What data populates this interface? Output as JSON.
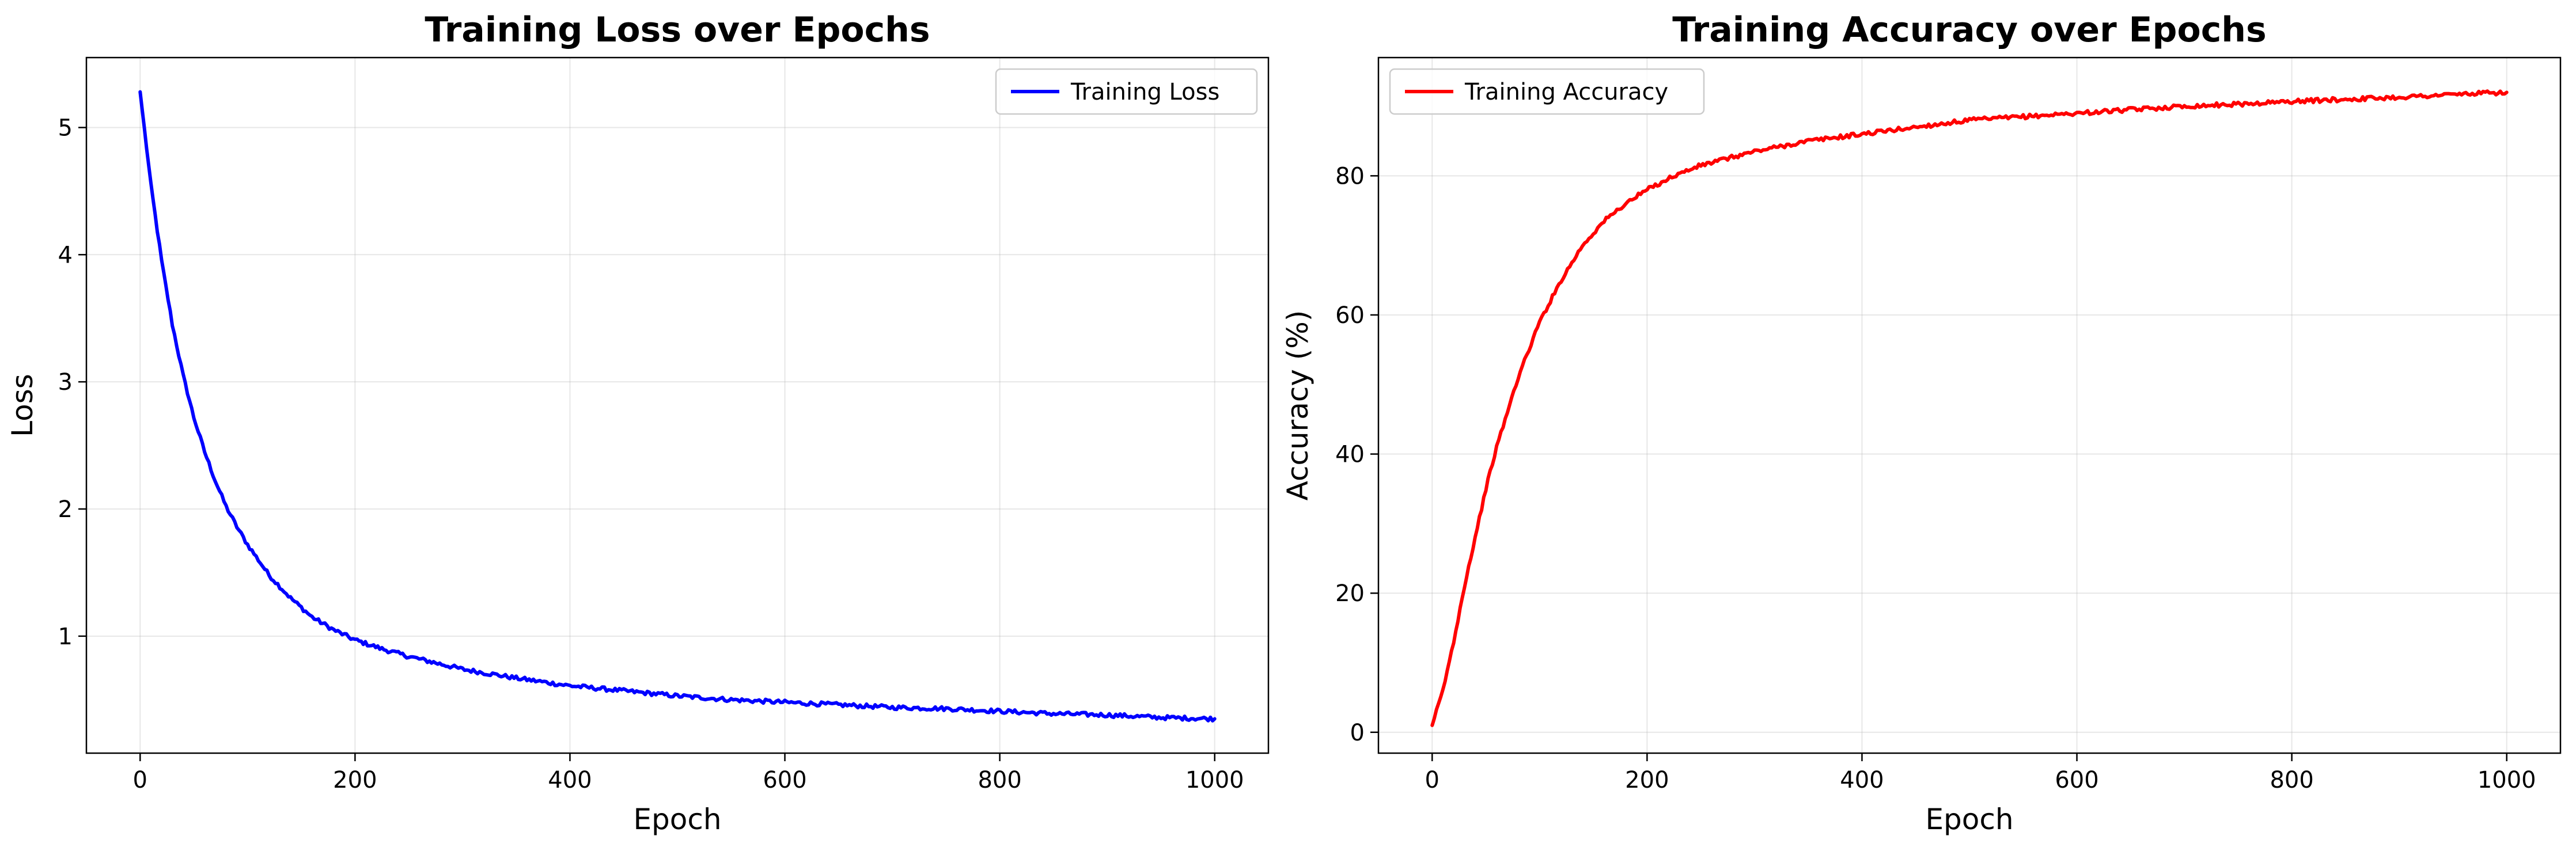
{
  "chart_data": [
    {
      "type": "line",
      "title": "Training Loss over Epochs",
      "xlabel": "Epoch",
      "ylabel": "Loss",
      "xlim": [
        -50,
        1050
      ],
      "ylim": [
        0.08,
        5.55
      ],
      "xticks": [
        0,
        200,
        400,
        600,
        800,
        1000
      ],
      "yticks": [
        1,
        2,
        3,
        4,
        5
      ],
      "grid": true,
      "legend": "upper-right",
      "series": [
        {
          "name": "Training Loss",
          "color": "#0000ff",
          "x": [
            0,
            10,
            20,
            30,
            40,
            50,
            60,
            70,
            80,
            90,
            100,
            120,
            140,
            160,
            180,
            200,
            225,
            250,
            275,
            300,
            350,
            400,
            450,
            500,
            550,
            600,
            650,
            700,
            750,
            800,
            850,
            900,
            950,
            1000
          ],
          "y": [
            5.28,
            4.55,
            3.95,
            3.45,
            3.05,
            2.72,
            2.45,
            2.22,
            2.02,
            1.86,
            1.72,
            1.48,
            1.3,
            1.15,
            1.05,
            0.97,
            0.9,
            0.84,
            0.79,
            0.74,
            0.67,
            0.61,
            0.57,
            0.53,
            0.5,
            0.48,
            0.46,
            0.44,
            0.43,
            0.41,
            0.39,
            0.38,
            0.36,
            0.35
          ]
        }
      ]
    },
    {
      "type": "line",
      "title": "Training Accuracy over Epochs",
      "xlabel": "Epoch",
      "ylabel": "Accuracy (%)",
      "xlim": [
        -50,
        1050
      ],
      "ylim": [
        -3,
        97
      ],
      "xticks": [
        0,
        200,
        400,
        600,
        800,
        1000
      ],
      "yticks": [
        0,
        20,
        40,
        60,
        80
      ],
      "grid": true,
      "legend": "upper-left",
      "series": [
        {
          "name": "Training Accuracy",
          "color": "#ff0000",
          "x": [
            0,
            10,
            20,
            30,
            40,
            50,
            60,
            70,
            80,
            90,
            100,
            120,
            140,
            160,
            180,
            200,
            225,
            250,
            275,
            300,
            350,
            400,
            450,
            500,
            550,
            600,
            650,
            700,
            750,
            800,
            850,
            900,
            950,
            1000
          ],
          "y": [
            1.0,
            6.0,
            13.0,
            21.0,
            28.0,
            35.0,
            41.0,
            46.0,
            51.0,
            55.0,
            59.0,
            65.0,
            70.0,
            73.5,
            76.0,
            78.0,
            80.0,
            81.5,
            82.5,
            83.5,
            85.0,
            86.0,
            87.0,
            88.0,
            88.5,
            89.0,
            89.5,
            90.0,
            90.3,
            90.7,
            91.0,
            91.3,
            91.7,
            92.0
          ]
        }
      ]
    }
  ]
}
